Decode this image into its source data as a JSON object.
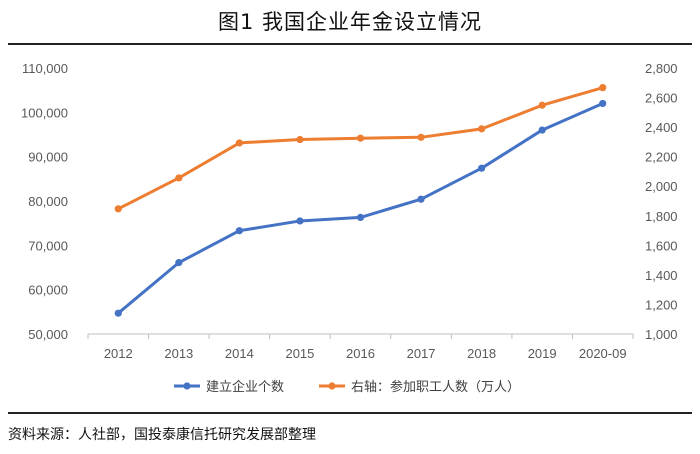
{
  "title": "图1 我国企业年金设立情况",
  "source": "资料来源：人社部，国投泰康信托研究发展部整理",
  "chart_data": {
    "type": "line",
    "categories": [
      "2012",
      "2013",
      "2014",
      "2015",
      "2016",
      "2017",
      "2018",
      "2019",
      "2020-09"
    ],
    "left_axis": {
      "min": 50000,
      "max": 110000,
      "step": 10000,
      "tick_labels": [
        "50,000",
        "60,000",
        "70,000",
        "80,000",
        "90,000",
        "100,000",
        "110,000"
      ]
    },
    "right_axis": {
      "min": 1000,
      "max": 2800,
      "step": 200,
      "tick_labels": [
        "1,000",
        "1,200",
        "1,400",
        "1,600",
        "1,800",
        "2,000",
        "2,200",
        "2,400",
        "2,600",
        "2,800"
      ]
    },
    "grid": false,
    "legend_position": "bottom",
    "series": [
      {
        "name": "建立企业个数",
        "axis": "left",
        "color": "#4472C4",
        "values": [
          54700,
          66100,
          73300,
          75500,
          76300,
          80400,
          87400,
          96000,
          102000
        ]
      },
      {
        "name": "右轴：参加职工人数（万人）",
        "axis": "right",
        "color": "#ED7D31",
        "values": [
          1847,
          2056,
          2293,
          2316,
          2325,
          2331,
          2388,
          2548,
          2667
        ]
      }
    ]
  }
}
